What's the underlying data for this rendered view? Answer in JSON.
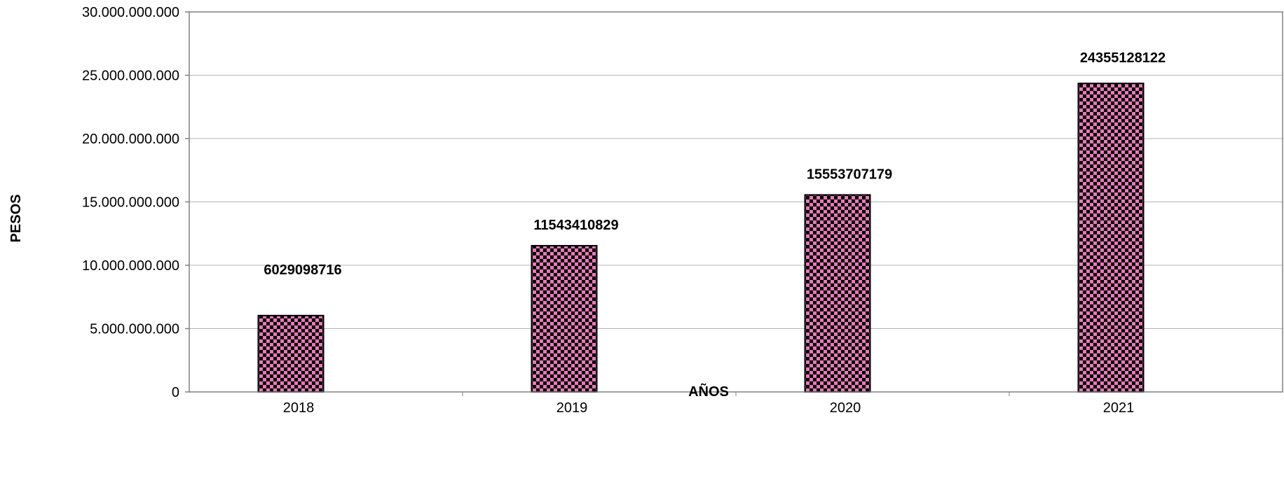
{
  "chart_data": {
    "type": "bar",
    "categories": [
      "2018",
      "2019",
      "2020",
      "2021"
    ],
    "values": [
      6029098716,
      11543410829,
      15553707179,
      24355128122
    ],
    "data_labels": [
      "6029098716",
      "11543410829",
      "15553707179",
      "24355128122"
    ],
    "title": "",
    "xlabel": "AÑOS",
    "ylabel": "PESOS",
    "ylim": [
      0,
      30000000000
    ],
    "yticks": [
      0,
      5000000000,
      10000000000,
      15000000000,
      20000000000,
      25000000000,
      30000000000
    ],
    "ytick_labels": [
      "0",
      "5.000.000.000",
      "10.000.000.000",
      "15.000.000.000",
      "20.000.000.000",
      "25.000.000.000",
      "30.000.000.000"
    ],
    "grid": true,
    "legend": "none",
    "bar_color": "#e57bb8",
    "bar_pattern": "checkerboard",
    "pattern_color": "#000000",
    "gridline_color": "#b3b3b3"
  }
}
